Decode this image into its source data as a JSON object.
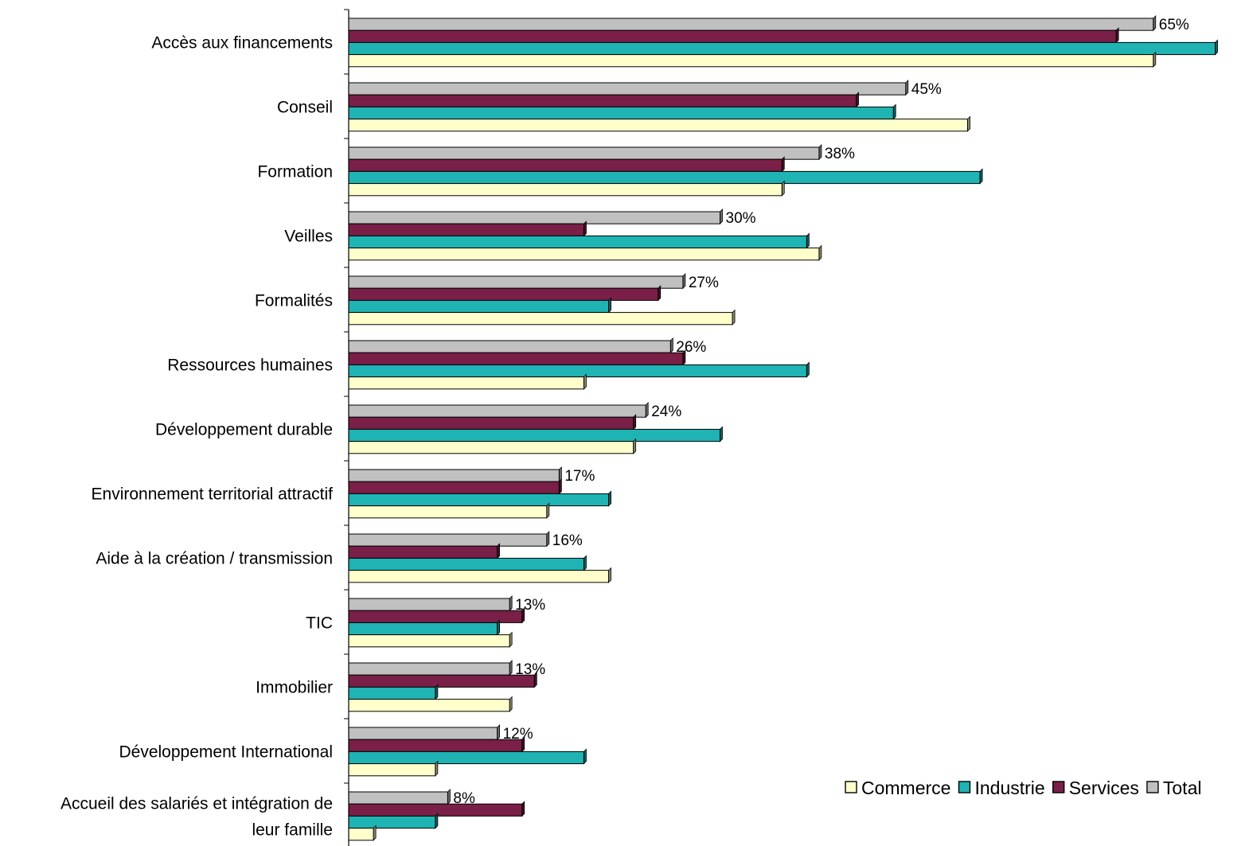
{
  "chart_data": {
    "type": "bar",
    "orientation": "horizontal",
    "categories": [
      "Accès aux financements",
      "Conseil",
      "Formation",
      "Veilles",
      "Formalités",
      "Ressources humaines",
      "Développement durable",
      "Environnement territorial attractif",
      "Aide à la création / transmission",
      "TIC",
      "Immobilier",
      "Développement International",
      "Accueil des salariés et intégration de leur famille"
    ],
    "series": [
      {
        "name": "Total",
        "color": "#C0C0C0",
        "values": [
          65,
          45,
          38,
          30,
          27,
          26,
          24,
          17,
          16,
          13,
          13,
          12,
          8
        ]
      },
      {
        "name": "Services",
        "color": "#7A1F47",
        "values": [
          62,
          41,
          35,
          19,
          25,
          27,
          23,
          17,
          12,
          14,
          15,
          14,
          14
        ]
      },
      {
        "name": "Industrie",
        "color": "#1FB3B3",
        "values": [
          70,
          44,
          51,
          37,
          21,
          37,
          30,
          21,
          19,
          12,
          7,
          19,
          7
        ]
      },
      {
        "name": "Commerce",
        "color": "#FFFFCC",
        "values": [
          65,
          50,
          35,
          38,
          31,
          19,
          23,
          16,
          21,
          13,
          13,
          7,
          2
        ]
      }
    ],
    "data_labels": [
      "65%",
      "45%",
      "38%",
      "30%",
      "27%",
      "26%",
      "24%",
      "17%",
      "16%",
      "13%",
      "13%",
      "12%",
      "8%"
    ],
    "legend": [
      "Commerce",
      "Industrie",
      "Services",
      "Total"
    ],
    "legend_position": "bottom-right",
    "xlim": [
      0,
      70
    ],
    "grid": false,
    "title": "",
    "xlabel": "",
    "ylabel": ""
  }
}
